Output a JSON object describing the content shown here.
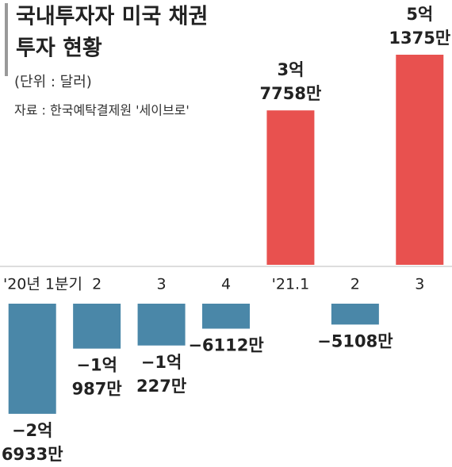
{
  "chart_data": {
    "type": "bar",
    "title": [
      "국내투자자 미국 채권",
      "투자 현황"
    ],
    "subtitle": "(단위 : 달러)",
    "source": "자료 : 한국예탁결제원 '세이브로'",
    "categories": [
      "'20년 1분기",
      "2",
      "3",
      "4",
      "'21.1",
      "2",
      "3"
    ],
    "values": [
      -269330000,
      -109870000,
      -102270000,
      -61120000,
      377580000,
      -51080000,
      513750000
    ],
    "value_labels": [
      [
        "−2억",
        "6933만"
      ],
      [
        "−1억",
        "987만"
      ],
      [
        "−1억",
        "227만"
      ],
      [
        "−6112만"
      ],
      [
        "3억",
        "7758만"
      ],
      [
        "−5108만"
      ],
      [
        "5억",
        "1375만"
      ]
    ],
    "positive_color": "#e8514f",
    "negative_color": "#4a87a8"
  }
}
